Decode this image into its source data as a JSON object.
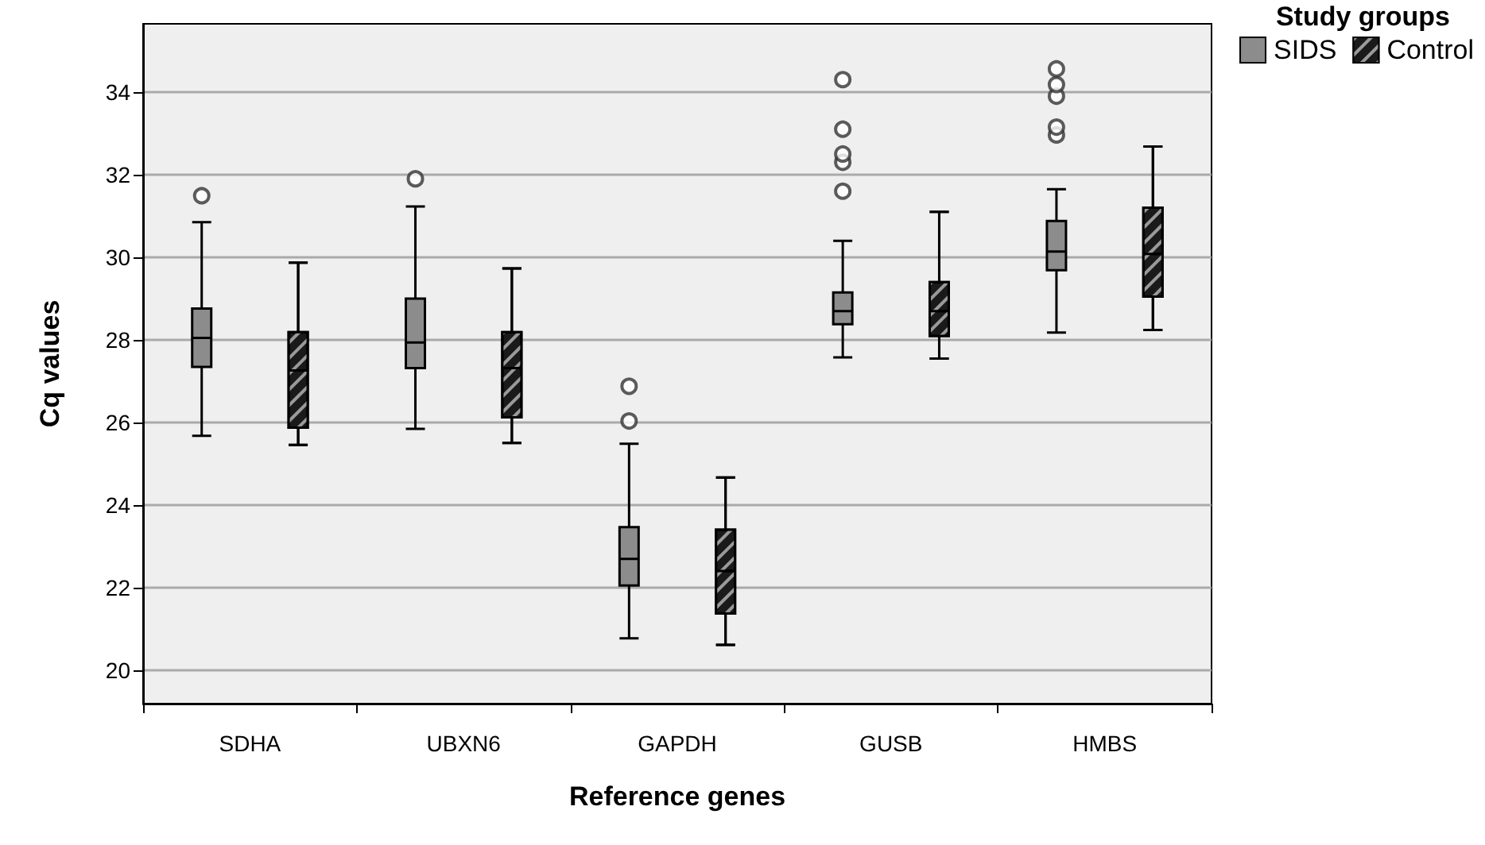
{
  "chart_data": {
    "type": "box",
    "xlabel": "Reference genes",
    "ylabel": "Cq values",
    "legend_title": "Study groups",
    "legend": "top right",
    "grid": "y",
    "categories": [
      "SDHA",
      "UBXN6",
      "GAPDH",
      "GUSB",
      "HMBS"
    ],
    "ylim": [
      19.2,
      35.65
    ],
    "yticks": [
      20,
      22,
      24,
      26,
      28,
      30,
      32,
      34
    ],
    "series": [
      {
        "name": "SIDS",
        "color": "#8c8c8c",
        "boxes": [
          {
            "low": 25.68,
            "q1": 27.35,
            "median": 28.05,
            "q3": 28.76,
            "high": 30.85,
            "outliers": [
              31.49
            ]
          },
          {
            "low": 25.85,
            "q1": 27.32,
            "median": 27.94,
            "q3": 29.0,
            "high": 31.23,
            "outliers": [
              31.9
            ]
          },
          {
            "low": 20.78,
            "q1": 22.06,
            "median": 22.7,
            "q3": 23.47,
            "high": 25.49,
            "outliers": [
              26.04,
              26.88
            ]
          },
          {
            "low": 27.58,
            "q1": 28.38,
            "median": 28.7,
            "q3": 29.15,
            "high": 30.4,
            "outliers": [
              31.6,
              32.3,
              32.5,
              33.1,
              34.3
            ]
          },
          {
            "low": 28.18,
            "q1": 29.69,
            "median": 30.14,
            "q3": 30.88,
            "high": 31.65,
            "outliers": [
              32.96,
              33.15,
              33.9,
              34.18,
              34.56
            ]
          }
        ]
      },
      {
        "name": "Control",
        "color": "#1a1a1a",
        "boxes": [
          {
            "low": 25.46,
            "q1": 25.88,
            "median": 27.26,
            "q3": 28.19,
            "high": 29.87
          },
          {
            "low": 25.51,
            "q1": 26.13,
            "median": 27.32,
            "q3": 28.19,
            "high": 29.73
          },
          {
            "low": 20.62,
            "q1": 21.38,
            "median": 22.41,
            "q3": 23.41,
            "high": 24.67
          },
          {
            "low": 27.55,
            "q1": 28.1,
            "median": 28.7,
            "q3": 29.4,
            "high": 31.1
          },
          {
            "low": 28.24,
            "q1": 29.05,
            "median": 30.08,
            "q3": 31.2,
            "high": 32.68
          }
        ]
      }
    ]
  }
}
